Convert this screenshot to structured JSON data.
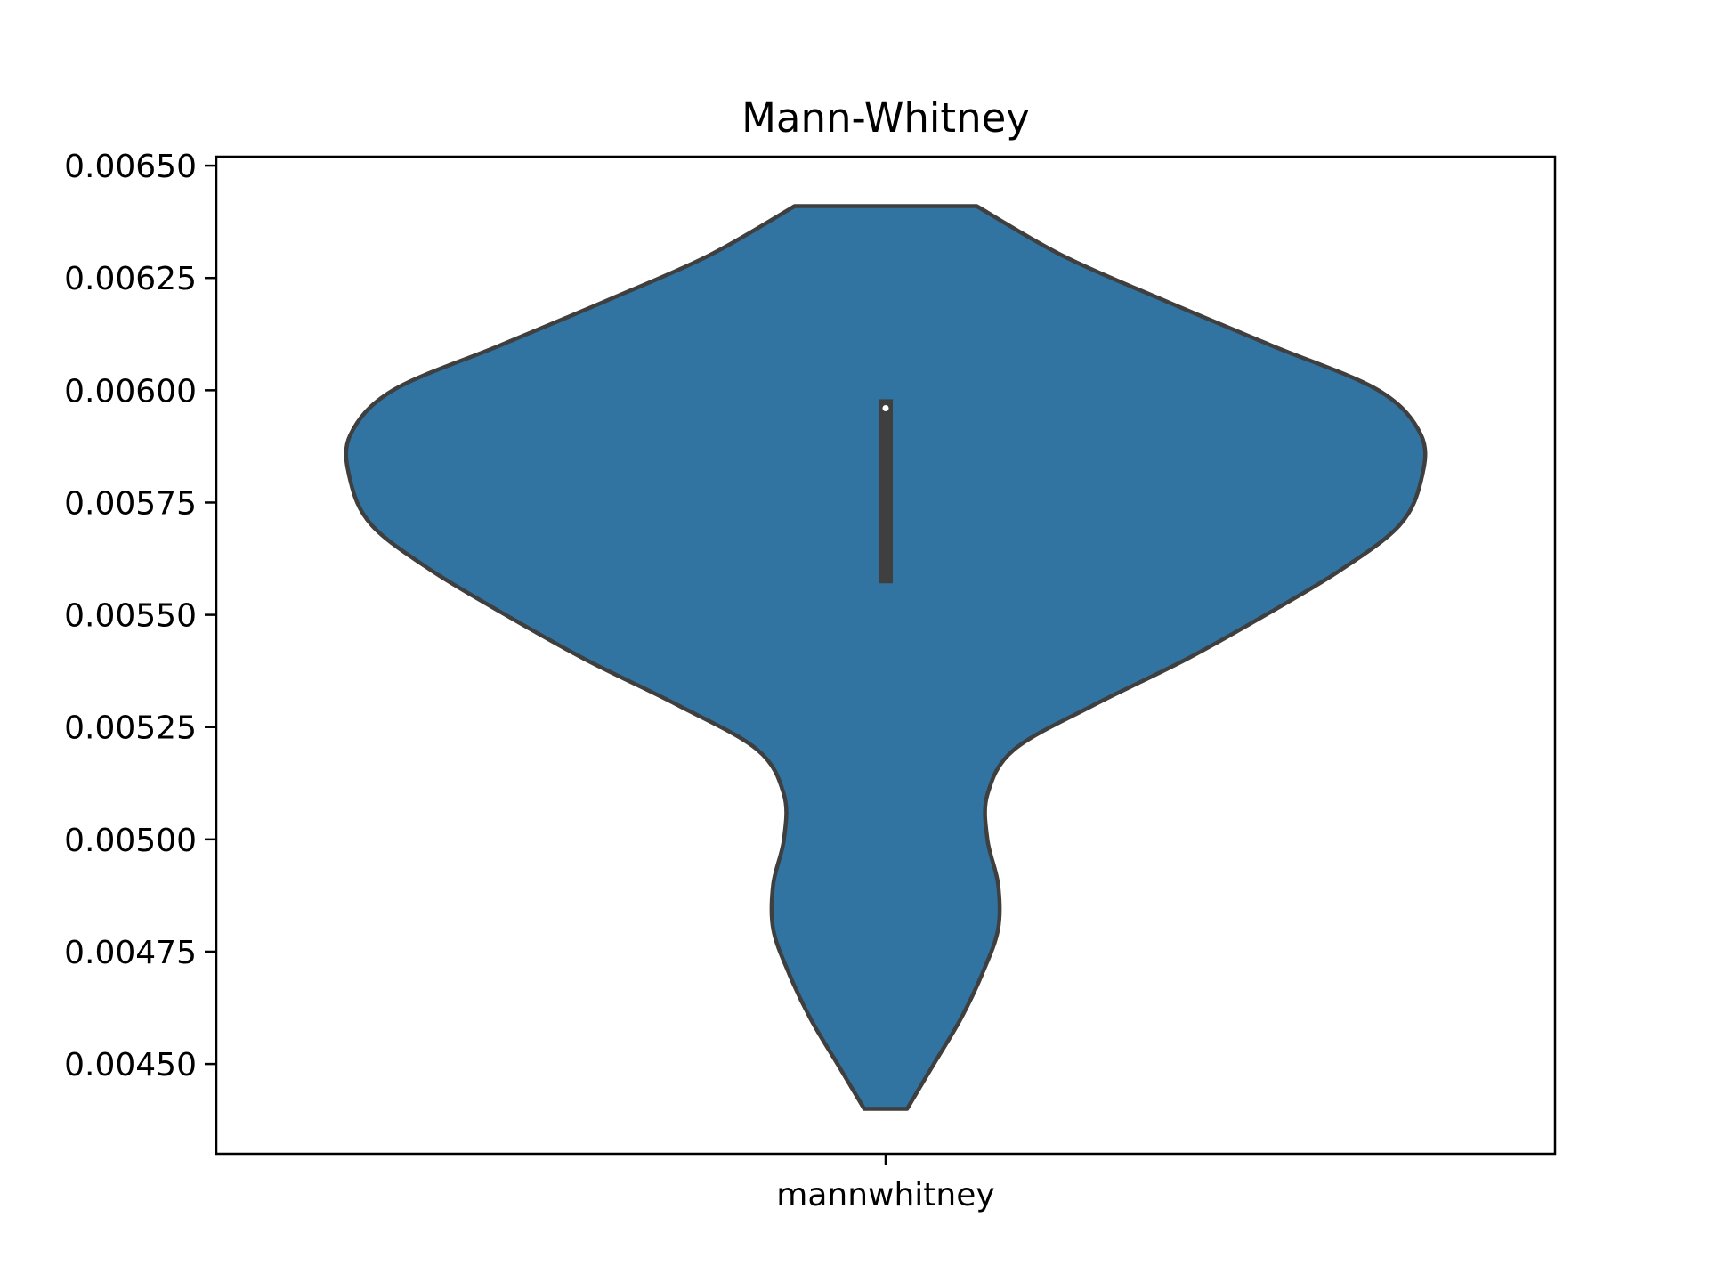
{
  "chart_data": {
    "type": "violin",
    "title": "Mann-Whitney",
    "xlabel": "",
    "ylabel": "",
    "categories": [
      "mannwhitney"
    ],
    "ylim": [
      0.0043,
      0.00652
    ],
    "yticks": [
      0.0045,
      0.00475,
      0.005,
      0.00525,
      0.0055,
      0.00575,
      0.006,
      0.00625,
      0.0065
    ],
    "ytick_labels": [
      "0.00450",
      "0.00475",
      "0.00500",
      "0.00525",
      "0.00550",
      "0.00575",
      "0.00600",
      "0.00625",
      "0.00650"
    ],
    "grid": false,
    "colors": {
      "fill": "#3274a1",
      "outline": "#3f3f3f",
      "box": "#3f3f3f",
      "median": "#ffffff"
    },
    "violins": [
      {
        "category": "mannwhitney",
        "min": 0.0044,
        "max": 0.00641,
        "q1": 0.00557,
        "median": 0.00596,
        "q3": 0.00598,
        "density_profile": [
          [
            0.0044,
            0.04
          ],
          [
            0.0045,
            0.09
          ],
          [
            0.0046,
            0.14
          ],
          [
            0.0047,
            0.18
          ],
          [
            0.0048,
            0.21
          ],
          [
            0.0049,
            0.21
          ],
          [
            0.005,
            0.19
          ],
          [
            0.0051,
            0.19
          ],
          [
            0.0052,
            0.24
          ],
          [
            0.0053,
            0.39
          ],
          [
            0.0054,
            0.56
          ],
          [
            0.0055,
            0.71
          ],
          [
            0.0056,
            0.85
          ],
          [
            0.0057,
            0.96
          ],
          [
            0.0058,
            1.0
          ],
          [
            0.0059,
            1.0
          ],
          [
            0.006,
            0.92
          ],
          [
            0.0061,
            0.72
          ],
          [
            0.0062,
            0.52
          ],
          [
            0.0063,
            0.33
          ],
          [
            0.00641,
            0.17
          ]
        ]
      }
    ]
  }
}
